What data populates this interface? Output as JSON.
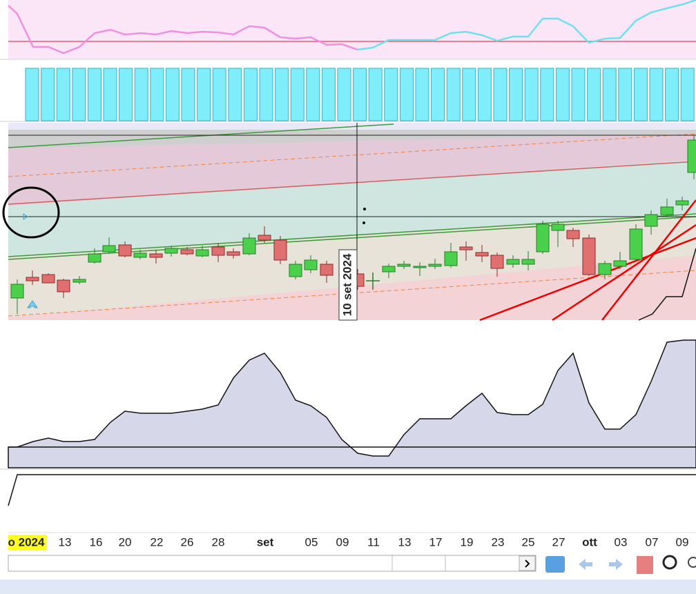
{
  "axis": {
    "labels": [
      "o 2024",
      "13",
      "16",
      "20",
      "22",
      "26",
      "28",
      "set",
      "05",
      "09",
      "11",
      "13",
      "17",
      "19",
      "23",
      "25",
      "27",
      "ott",
      "03",
      "07",
      "09"
    ]
  },
  "crosshair": {
    "label": "10 set 2024"
  }
}
